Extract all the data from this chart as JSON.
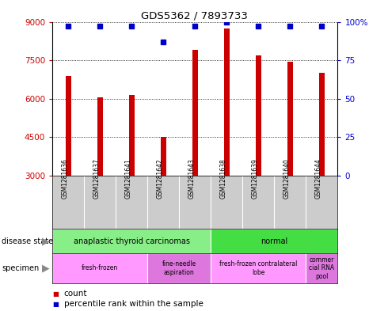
{
  "title": "GDS5362 / 7893733",
  "samples": [
    "GSM1281636",
    "GSM1281637",
    "GSM1281641",
    "GSM1281642",
    "GSM1281643",
    "GSM1281638",
    "GSM1281639",
    "GSM1281640",
    "GSM1281644"
  ],
  "counts": [
    6900,
    6050,
    6150,
    4500,
    7900,
    8750,
    7700,
    7450,
    7000
  ],
  "percentiles": [
    97,
    97,
    97,
    87,
    97,
    100,
    97,
    97,
    97
  ],
  "ymin": 3000,
  "ymax": 9000,
  "yticks": [
    3000,
    4500,
    6000,
    7500,
    9000
  ],
  "right_yticks": [
    0,
    25,
    50,
    75,
    100
  ],
  "bar_color": "#cc0000",
  "dot_color": "#0000cc",
  "background_color": "#ffffff",
  "grid_color": "#000000",
  "tick_label_color_left": "#cc0000",
  "tick_label_color_right": "#0000cc",
  "label_area_color": "#cccccc",
  "ds_color_atc": "#88ee88",
  "ds_color_normal": "#44dd44",
  "sp_color_ff": "#ff99ff",
  "sp_color_fna": "#dd77dd",
  "sp_color_ffl": "#ff99ff",
  "sp_color_crna": "#dd77dd"
}
